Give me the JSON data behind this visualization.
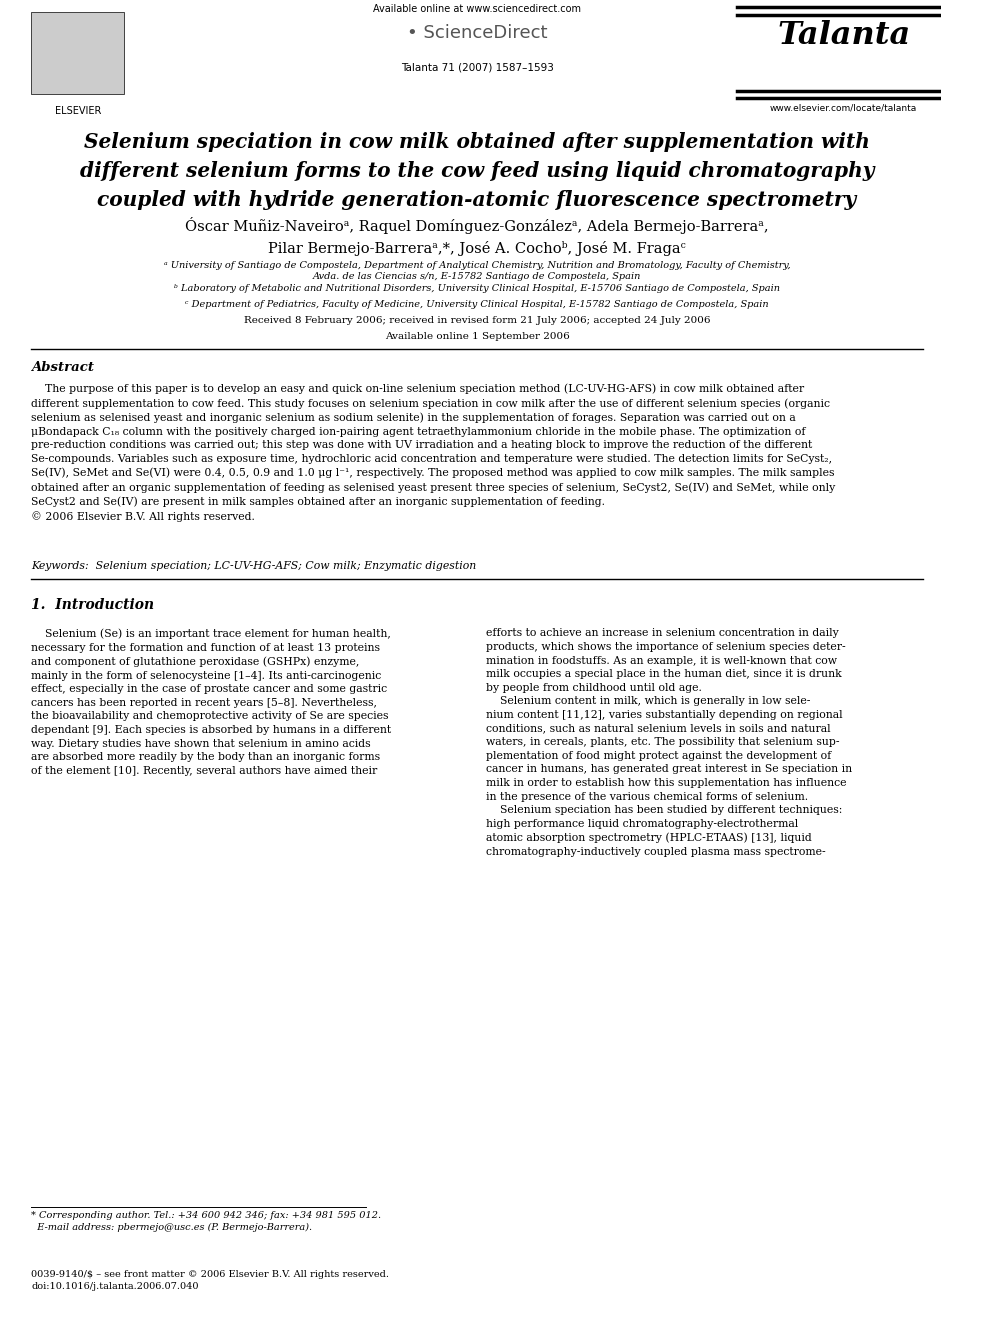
{
  "bg_color": "#ffffff",
  "page_width": 9.92,
  "page_height": 13.23,
  "header": {
    "available_online": "Available online at www.sciencedirect.com",
    "sciencedirect": "ScienceDirect",
    "journal": "Talanta",
    "journal_info": "Talanta 71 (2007) 1587–1593",
    "elsevier_text": "ELSEVIER",
    "website": "www.elsevier.com/locate/talanta"
  },
  "title": "Selenium speciation in cow milk obtained after supplementation with\ndifferent selenium forms to the cow feed using liquid chromatography\ncoupled with hydride generation-atomic fluorescence spectrometry",
  "authors": "Óscar Muñiz-Naveiroᵃ, Raquel Domínguez-Gonzálezᵃ, Adela Bermejo-Barreraᵃ,\nPilar Bermejo-Barreraᵃ,*, José A. Cochoᵇ, José M. Fragaᶜ",
  "affil_a": "ᵃ University of Santiago de Compostela, Department of Analytical Chemistry, Nutrition and Bromatology, Faculty of Chemistry,\nAvda. de las Ciencias s/n, E-15782 Santiago de Compostela, Spain",
  "affil_b": "ᵇ Laboratory of Metabolic and Nutritional Disorders, University Clinical Hospital, E-15706 Santiago de Compostela, Spain",
  "affil_c": "ᶜ Department of Pediatrics, Faculty of Medicine, University Clinical Hospital, E-15782 Santiago de Compostela, Spain",
  "received": "Received 8 February 2006; received in revised form 21 July 2006; accepted 24 July 2006",
  "available": "Available online 1 September 2006",
  "abstract_title": "Abstract",
  "abstract_text": "    The purpose of this paper is to develop an easy and quick on-line selenium speciation method (LC-UV-HG-AFS) in cow milk obtained after\ndifferent supplementation to cow feed. This study focuses on selenium speciation in cow milk after the use of different selenium species (organic\nselenium as selenised yeast and inorganic selenium as sodium selenite) in the supplementation of forages. Separation was carried out on a\nμBondapack C₁₈ column with the positively charged ion-pairing agent tetraethylammonium chloride in the mobile phase. The optimization of\npre-reduction conditions was carried out; this step was done with UV irradiation and a heating block to improve the reduction of the different\nSe-compounds. Variables such as exposure time, hydrochloric acid concentration and temperature were studied. The detection limits for SeCyst₂,\nSe(IV), SeMet and Se(VI) were 0.4, 0.5, 0.9 and 1.0 μg l⁻¹, respectively. The proposed method was applied to cow milk samples. The milk samples\nobtained after an organic supplementation of feeding as selenised yeast present three species of selenium, SeCyst2, Se(IV) and SeMet, while only\nSeCyst2 and Se(IV) are present in milk samples obtained after an inorganic supplementation of feeding.\n© 2006 Elsevier B.V. All rights reserved.",
  "keywords": "Keywords:  Selenium speciation; LC-UV-HG-AFS; Cow milk; Enzymatic digestion",
  "intro_title": "1.  Introduction",
  "intro_col1": "    Selenium (Se) is an important trace element for human health,\nnecessary for the formation and function of at least 13 proteins\nand component of glutathione peroxidase (GSHPx) enzyme,\nmainly in the form of selenocysteine [1–4]. Its anti-carcinogenic\neffect, especially in the case of prostate cancer and some gastric\ncancers has been reported in recent years [5–8]. Nevertheless,\nthe bioavailability and chemoprotective activity of Se are species\ndependant [9]. Each species is absorbed by humans in a different\nway. Dietary studies have shown that selenium in amino acids\nare absorbed more readily by the body than an inorganic forms\nof the element [10]. Recently, several authors have aimed their",
  "intro_col2": "efforts to achieve an increase in selenium concentration in daily\nproducts, which shows the importance of selenium species deter-\nmination in foodstuffs. As an example, it is well-known that cow\nmilk occupies a special place in the human diet, since it is drunk\nby people from childhood until old age.\n    Selenium content in milk, which is generally in low sele-\nnium content [11,12], varies substantially depending on regional\nconditions, such as natural selenium levels in soils and natural\nwaters, in cereals, plants, etc. The possibility that selenium sup-\nplementation of food might protect against the development of\ncancer in humans, has generated great interest in Se speciation in\nmilk in order to establish how this supplementation has influence\nin the presence of the various chemical forms of selenium.\n    Selenium speciation has been studied by different techniques:\nhigh performance liquid chromatography-electrothermal\natomic absorption spectrometry (HPLC-ETAAS) [13], liquid\nchromatography-inductively coupled plasma mass spectrome-",
  "footnote_star": "* Corresponding author. Tel.: +34 600 942 346; fax: +34 981 595 012.\n  E-mail address: pbermejo@usc.es (P. Bermejo-Barrera).",
  "footer": "0039-9140/$ – see front matter © 2006 Elsevier B.V. All rights reserved.\ndoi:10.1016/j.talanta.2006.07.040"
}
